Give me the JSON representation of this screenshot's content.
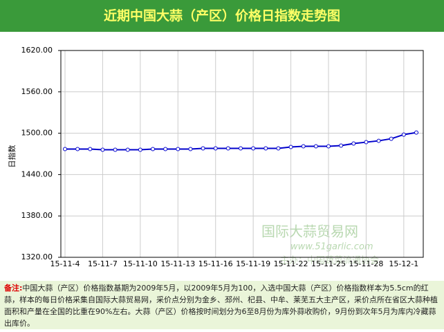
{
  "chart_data": {
    "type": "line",
    "title": "近期中国大蒜（产区）价格日指数走势图",
    "y_label": "日指数",
    "categories": [
      "15-11-4",
      null,
      null,
      "15-11-7",
      null,
      null,
      "15-11-10",
      null,
      null,
      "15-11-13",
      null,
      null,
      "15-11-16",
      null,
      null,
      "15-11-19",
      null,
      null,
      "15-11-22",
      null,
      null,
      "15-11-25",
      null,
      null,
      "15-11-28",
      null,
      null,
      "15-12-1",
      null
    ],
    "series": [
      {
        "name": "日指数",
        "color": "#0000cc",
        "values": [
          1477,
          1477,
          1477,
          1476,
          1476,
          1476,
          1476,
          1477,
          1477,
          1477,
          1477,
          1478,
          1478,
          1478,
          1478,
          1478,
          1478,
          1478,
          1480,
          1481,
          1481,
          1481,
          1482,
          1485,
          1487,
          1489,
          1492,
          1498,
          1501
        ]
      }
    ],
    "ylim": [
      1320,
      1620
    ],
    "yticks": [
      {
        "value": 1320,
        "label": "1320.00"
      },
      {
        "value": 1380,
        "label": "1380.00"
      },
      {
        "value": 1440,
        "label": "1440.00"
      },
      {
        "value": 1500,
        "label": "1500.00"
      },
      {
        "value": 1560,
        "label": "1560.00"
      },
      {
        "value": 1620,
        "label": "1620.00"
      }
    ],
    "grid": true,
    "watermark": [
      "国际大蒜贸易网",
      "www.51garlic.com",
      "主办：中国蔬菜流通协会"
    ]
  },
  "note": {
    "label": "备注:",
    "text": "中国大蒜（产区）价格指数基期为2009年5月，以2009年5月为100，入选中国大蒜（产区）价格指数样本为5.5cm的红蒜，样本的每日价格采集自国际大蒜贸易网，采价点分别为金乡、邳州、杞县、中牟、莱芜五大主产区，采价点所在省区大蒜种植面积和产量在全国的比重在90%左右。大蒜（产区）价格按时间划分为6至8月份为库外蒜收购价，9月份到次年5月为库内冷藏蒜出库价。"
  }
}
